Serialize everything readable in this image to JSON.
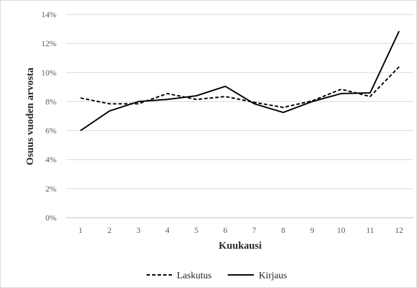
{
  "chart_data": {
    "type": "line",
    "xlabel": "Kuukausi",
    "ylabel": "Osuus vuoden arvosta",
    "x": [
      "1",
      "2",
      "3",
      "4",
      "5",
      "6",
      "7",
      "8",
      "9",
      "10",
      "11",
      "12"
    ],
    "ylim": [
      0,
      14
    ],
    "yticks": [
      "0%",
      "2%",
      "4%",
      "6%",
      "8%",
      "10%",
      "12%",
      "14%"
    ],
    "grid": true,
    "legend_position": "bottom",
    "series": [
      {
        "name": "Laskutus",
        "style": "dashed",
        "color": "#000000",
        "values": [
          8.25,
          7.85,
          7.85,
          8.55,
          8.15,
          8.35,
          7.95,
          7.6,
          8.05,
          8.85,
          8.35,
          10.4
        ]
      },
      {
        "name": "Kirjaus",
        "style": "solid",
        "color": "#000000",
        "values": [
          6.0,
          7.35,
          8.0,
          8.15,
          8.4,
          9.05,
          7.85,
          7.25,
          8.0,
          8.55,
          8.6,
          12.85
        ]
      }
    ]
  }
}
